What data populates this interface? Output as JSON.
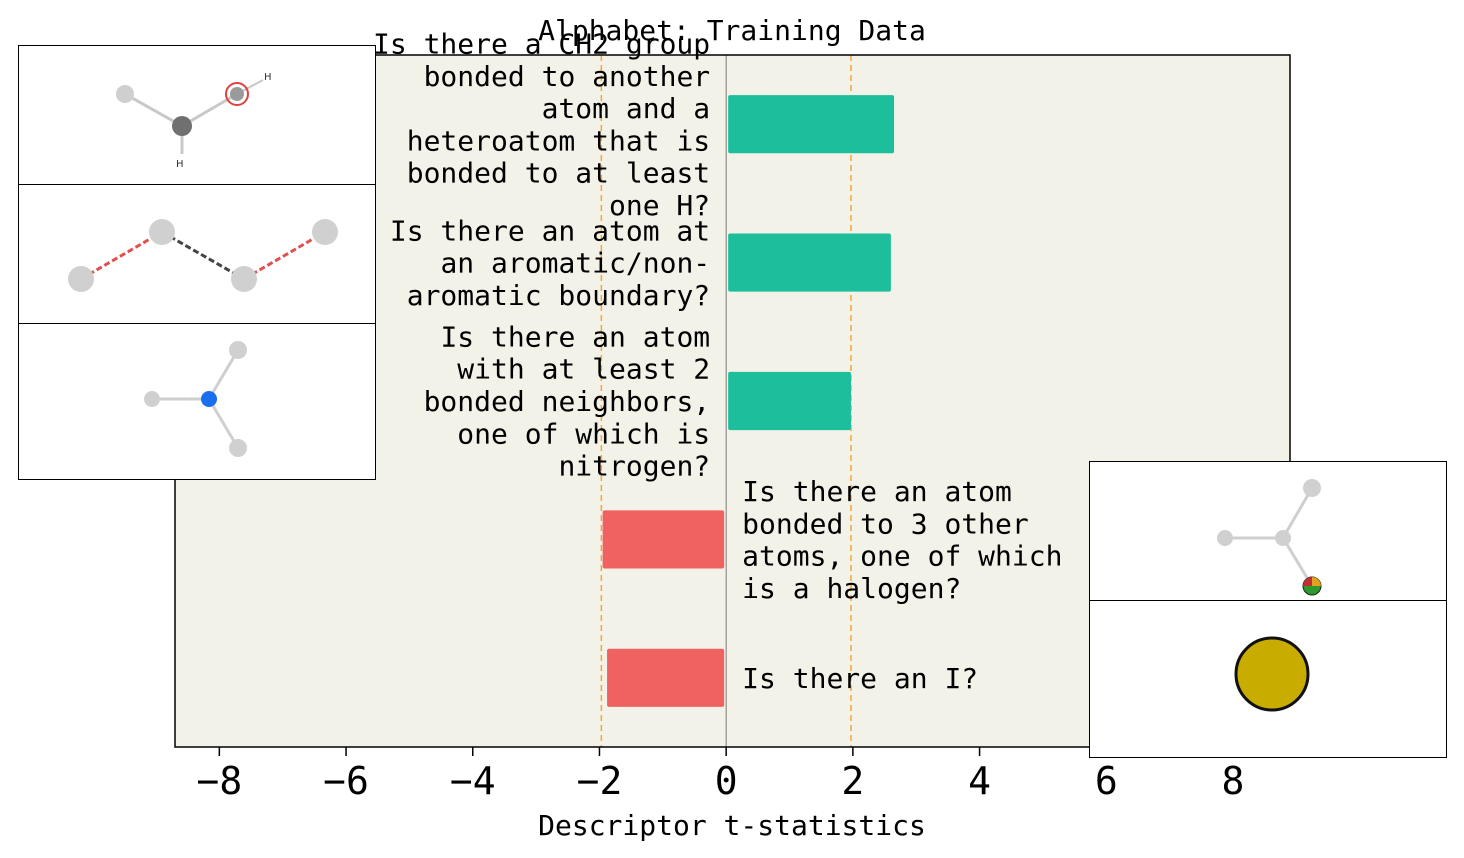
{
  "chart_data": {
    "type": "bar",
    "orientation": "horizontal",
    "title": "Alphabet: Training Data",
    "xlabel": "Descriptor t-statistics",
    "ylabel": "",
    "xlim": [
      -8.7,
      8.9
    ],
    "xticks": [
      -8,
      -6,
      -4,
      -2,
      0,
      2,
      4,
      6,
      8
    ],
    "xtick_labels": [
      "−8",
      "−6",
      "−4",
      "−2",
      "0",
      "2",
      "4",
      "6",
      "8"
    ],
    "threshold_lines": [
      -1.97,
      1.97
    ],
    "grid": false,
    "categories": [
      "Is there a CH2 group bonded to another atom and a heteroatom that is bonded to at least one H?",
      "Is there an atom at an aromatic/non-aromatic boundary?",
      "Is there an atom with at least 2 bonded neighbors, one of which is nitrogen?",
      "Is there an atom bonded to 3 other atoms, one of which is a halogen?",
      "Is there an I?"
    ],
    "category_lines": [
      [
        "Is there a CH2 group",
        "bonded to another",
        "atom and a",
        "heteroatom that is",
        "bonded to at least",
        "one H?"
      ],
      [
        "Is there an atom at",
        "an aromatic/non-",
        "aromatic boundary?"
      ],
      [
        "Is there an atom",
        "with at least 2",
        "bonded neighbors,",
        "one of which is",
        "nitrogen?"
      ],
      [
        "Is there an atom",
        "bonded to 3 other",
        "atoms, one of which",
        "is a halogen?"
      ],
      [
        "Is there an I?"
      ]
    ],
    "values": [
      2.65,
      2.6,
      1.97,
      -1.95,
      -1.88
    ],
    "colors": {
      "positive": "#1dbe9b",
      "negative": "#f06262",
      "threshold": "#f6a637",
      "plot_background": "#f3f2e8",
      "zero_line": "#7a7a7a"
    }
  },
  "insets": [
    {
      "name": "ch2-heteroatom-molecule-icon"
    },
    {
      "name": "aromatic-boundary-molecule-icon"
    },
    {
      "name": "nitrogen-neighbor-molecule-icon"
    },
    {
      "name": "halogen-branch-molecule-icon"
    },
    {
      "name": "iodine-atom-icon"
    }
  ]
}
